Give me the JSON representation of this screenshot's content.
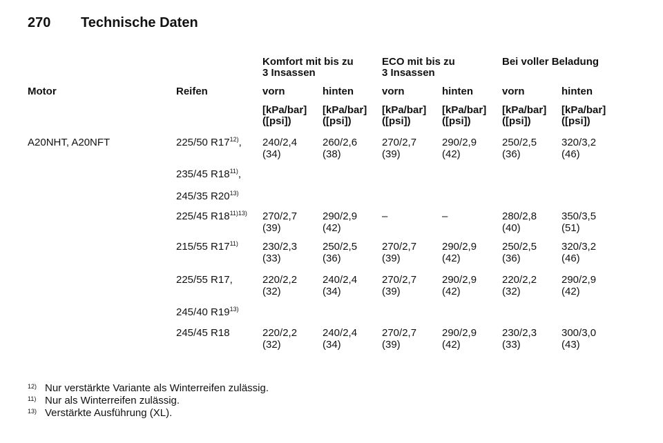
{
  "header": {
    "page": "270",
    "title": "Technische Daten"
  },
  "table": {
    "groups": [
      [
        "Komfort mit bis zu",
        "3 Insassen"
      ],
      [
        "ECO mit bis zu",
        "3 Insassen"
      ],
      [
        "Bei voller Beladung"
      ]
    ],
    "columns": [
      "Motor",
      "Reifen",
      "vorn",
      "hinten",
      "vorn",
      "hinten",
      "vorn",
      "hinten"
    ],
    "units": [
      [
        "[kPa/bar]",
        "([psi])"
      ],
      [
        "[kPa/bar]",
        "([psi])"
      ],
      [
        "[kPa/bar]",
        "([psi])"
      ],
      [
        "[kPa/bar]",
        "([psi])"
      ],
      [
        "[kPa/bar]",
        "([psi])"
      ],
      [
        "[kPa/bar]",
        "([psi])"
      ]
    ],
    "rows": [
      {
        "motor": "A20NHT, A20NFT",
        "tires": [
          {
            "size": "225/50 R17",
            "sup": "12)",
            "suffix": ","
          },
          {
            "size": "235/45 R18",
            "sup": "11)",
            "suffix": ","
          },
          {
            "size": "245/35 R20",
            "sup": "13)"
          }
        ],
        "values": [
          [
            "240/2,4",
            "(34)"
          ],
          [
            "260/2,6",
            "(38)"
          ],
          [
            "270/2,7",
            "(39)"
          ],
          [
            "290/2,9",
            "(42)"
          ],
          [
            "250/2,5",
            "(36)"
          ],
          [
            "320/3,2",
            "(46)"
          ]
        ]
      },
      {
        "tires": [
          {
            "size": "225/45 R18",
            "sup": "11)13)"
          }
        ],
        "values": [
          [
            "270/2,7",
            "(39)"
          ],
          [
            "290/2,9",
            "(42)"
          ],
          [
            "–"
          ],
          [
            "–"
          ],
          [
            "280/2,8",
            "(40)"
          ],
          [
            "350/3,5",
            "(51)"
          ]
        ]
      },
      {
        "tires": [
          {
            "size": "215/55 R17",
            "sup": "11)"
          }
        ],
        "values": [
          [
            "230/2,3",
            "(33)"
          ],
          [
            "250/2,5",
            "(36)"
          ],
          [
            "270/2,7",
            "(39)"
          ],
          [
            "290/2,9",
            "(42)"
          ],
          [
            "250/2,5",
            "(36)"
          ],
          [
            "320/3,2",
            "(46)"
          ]
        ]
      },
      {
        "tires": [
          {
            "size": "225/55 R17",
            "suffix": ","
          },
          {
            "size": "245/40 R19",
            "sup": "13)"
          }
        ],
        "values": [
          [
            "220/2,2",
            "(32)"
          ],
          [
            "240/2,4",
            "(34)"
          ],
          [
            "270/2,7",
            "(39)"
          ],
          [
            "290/2,9",
            "(42)"
          ],
          [
            "220/2,2",
            "(32)"
          ],
          [
            "290/2,9",
            "(42)"
          ]
        ]
      },
      {
        "tires": [
          {
            "size": "245/45 R18"
          }
        ],
        "values": [
          [
            "220/2,2",
            "(32)"
          ],
          [
            "240/2,4",
            "(34)"
          ],
          [
            "270/2,7",
            "(39)"
          ],
          [
            "290/2,9",
            "(42)"
          ],
          [
            "230/2,3",
            "(33)"
          ],
          [
            "300/3,0",
            "(43)"
          ]
        ]
      }
    ]
  },
  "footnotes": [
    {
      "mark": "12)",
      "text": "Nur verstärkte Variante als Winterreifen zulässig."
    },
    {
      "mark": "11)",
      "text": "Nur als Winterreifen zulässig."
    },
    {
      "mark": "13)",
      "text": "Verstärkte Ausführung (XL)."
    }
  ]
}
